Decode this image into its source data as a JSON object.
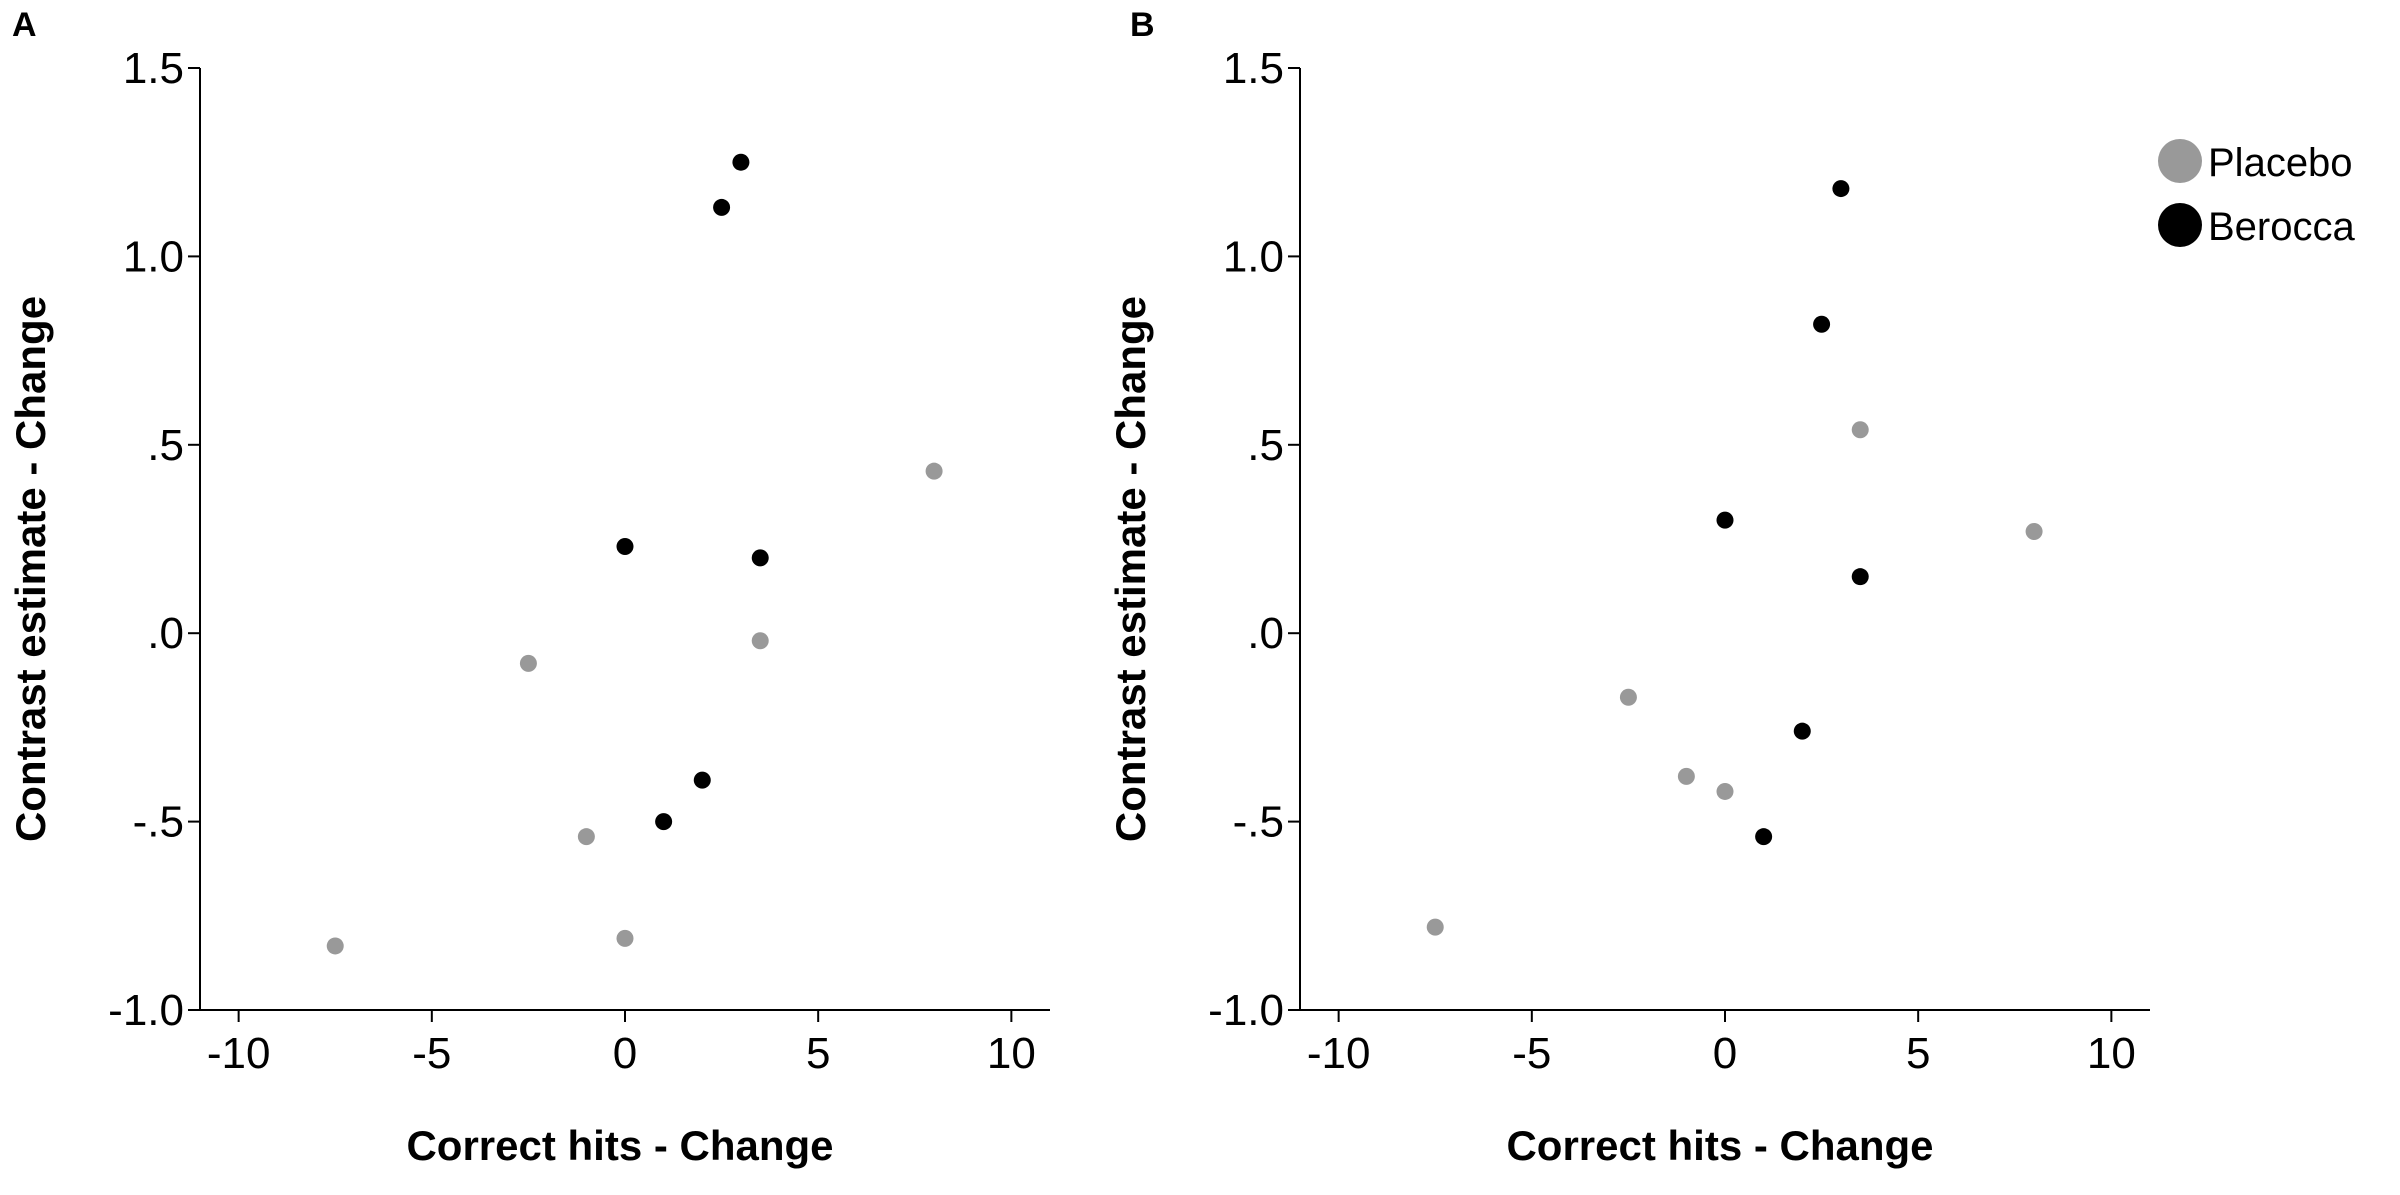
{
  "chart_data": [
    {
      "panel": "A",
      "type": "scatter",
      "xlabel": "Correct hits - Change",
      "ylabel": "Contrast estimate - Change",
      "xlim": [
        -11,
        11
      ],
      "ylim": [
        -1.0,
        1.5
      ],
      "xticks": [
        -10,
        -5,
        0,
        5,
        10
      ],
      "xtick_labels": [
        "-10",
        "-5",
        "0",
        "5",
        "10"
      ],
      "yticks": [
        -1.0,
        -0.5,
        0.0,
        0.5,
        1.0,
        1.5
      ],
      "ytick_labels": [
        "-1.0",
        "-.5",
        ".0",
        ".5",
        "1.0",
        "1.5"
      ],
      "series": [
        {
          "name": "Placebo",
          "color": "#999999",
          "points": [
            {
              "x": -7.5,
              "y": -0.83
            },
            {
              "x": -2.5,
              "y": -0.08
            },
            {
              "x": -1.0,
              "y": -0.54
            },
            {
              "x": 0.0,
              "y": -0.81
            },
            {
              "x": 3.5,
              "y": -0.02
            },
            {
              "x": 8.0,
              "y": 0.43
            }
          ]
        },
        {
          "name": "Berocca",
          "color": "#000000",
          "points": [
            {
              "x": 0.0,
              "y": 0.23
            },
            {
              "x": 1.0,
              "y": -0.5
            },
            {
              "x": 2.0,
              "y": -0.39
            },
            {
              "x": 2.5,
              "y": 1.13
            },
            {
              "x": 3.0,
              "y": 1.25
            },
            {
              "x": 3.5,
              "y": 0.2
            }
          ]
        }
      ]
    },
    {
      "panel": "B",
      "type": "scatter",
      "xlabel": "Correct hits - Change",
      "ylabel": "Contrast estimate - Change",
      "xlim": [
        -11,
        11
      ],
      "ylim": [
        -1.0,
        1.5
      ],
      "xticks": [
        -10,
        -5,
        0,
        5,
        10
      ],
      "xtick_labels": [
        "-10",
        "-5",
        "0",
        "5",
        "10"
      ],
      "yticks": [
        -1.0,
        -0.5,
        0.0,
        0.5,
        1.0,
        1.5
      ],
      "ytick_labels": [
        "-1.0",
        "-.5",
        ".0",
        ".5",
        "1.0",
        "1.5"
      ],
      "series": [
        {
          "name": "Placebo",
          "color": "#999999",
          "points": [
            {
              "x": -7.5,
              "y": -0.78
            },
            {
              "x": -2.5,
              "y": -0.17
            },
            {
              "x": -1.0,
              "y": -0.38
            },
            {
              "x": 0.0,
              "y": -0.42
            },
            {
              "x": 3.5,
              "y": 0.54
            },
            {
              "x": 8.0,
              "y": 0.27
            }
          ]
        },
        {
          "name": "Berocca",
          "color": "#000000",
          "points": [
            {
              "x": 0.0,
              "y": 0.3
            },
            {
              "x": 1.0,
              "y": -0.54
            },
            {
              "x": 2.0,
              "y": -0.26
            },
            {
              "x": 2.5,
              "y": 0.82
            },
            {
              "x": 3.0,
              "y": 1.18
            },
            {
              "x": 3.5,
              "y": 0.15
            }
          ]
        }
      ]
    }
  ],
  "legend": {
    "position": "top-right",
    "items": [
      {
        "label": "Placebo",
        "color": "#999999"
      },
      {
        "label": "Berocca",
        "color": "#000000"
      }
    ]
  }
}
